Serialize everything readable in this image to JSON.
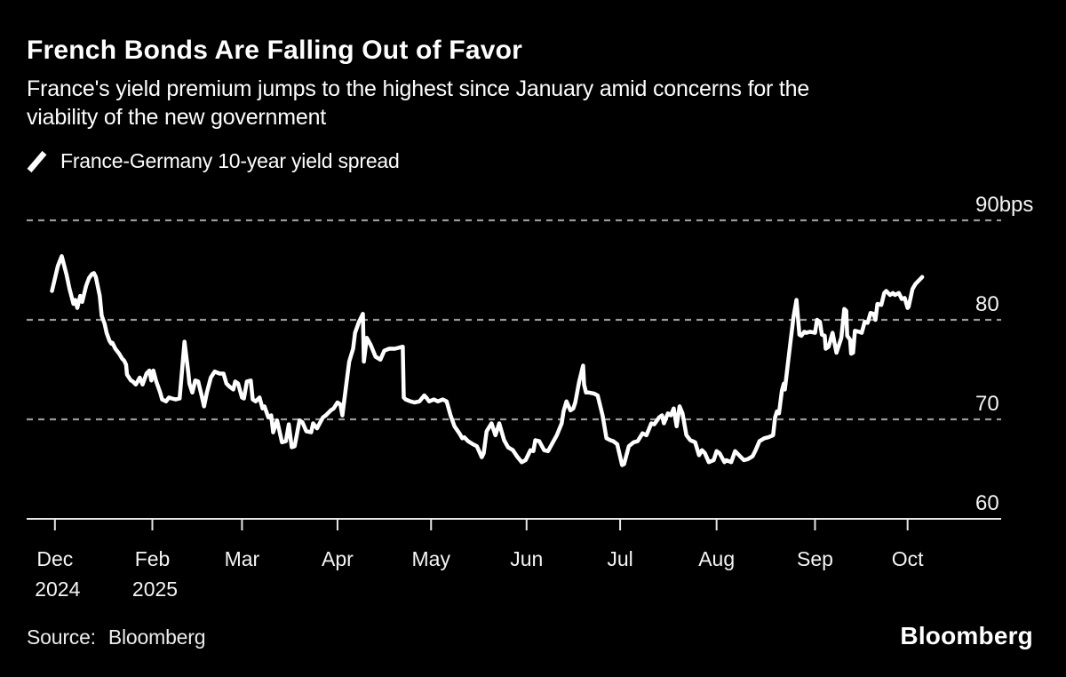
{
  "header": {
    "title": "French Bonds Are Falling Out of Favor",
    "subtitle_lines": [
      "France's yield premium jumps to the highest since January amid concerns for the",
      "viability of the new government"
    ]
  },
  "legend": {
    "series_label": "France-Germany 10-year yield spread"
  },
  "footer": {
    "source_label": "Source:",
    "source_value": "Bloomberg",
    "brand": "Bloomberg"
  },
  "colors": {
    "background": "#000000",
    "text": "#ffffff",
    "series_line": "#ffffff",
    "gridline": "#999999",
    "axis": "#e6e6e6"
  },
  "chart_data": {
    "type": "line",
    "title": "France-Germany 10-year yield spread",
    "unit": "bps",
    "xlabel": "",
    "ylabel": "",
    "ylim": [
      60,
      90
    ],
    "grid": "horizontal-dashed",
    "legend_position": "top-left",
    "yticks": [
      {
        "value": 90,
        "label": "90bps"
      },
      {
        "value": 80,
        "label": "80"
      },
      {
        "value": 70,
        "label": "70"
      },
      {
        "value": 60,
        "label": "60"
      }
    ],
    "xticks": [
      {
        "pos": 0.029,
        "label": "Dec",
        "year": "2024"
      },
      {
        "pos": 0.129,
        "label": "Feb",
        "year": "2025"
      },
      {
        "pos": 0.221,
        "label": "Mar"
      },
      {
        "pos": 0.319,
        "label": "Apr"
      },
      {
        "pos": 0.415,
        "label": "May"
      },
      {
        "pos": 0.513,
        "label": "Jun"
      },
      {
        "pos": 0.609,
        "label": "Jul"
      },
      {
        "pos": 0.708,
        "label": "Aug"
      },
      {
        "pos": 0.809,
        "label": "Sep"
      },
      {
        "pos": 0.904,
        "label": "Oct"
      }
    ],
    "series": [
      {
        "name": "France-Germany 10-year yield spread",
        "color": "#ffffff",
        "points": [
          [
            0.026,
            82.9
          ],
          [
            0.032,
            85.4
          ],
          [
            0.036,
            86.4
          ],
          [
            0.041,
            84.5
          ],
          [
            0.044,
            83.1
          ],
          [
            0.048,
            81.6
          ],
          [
            0.05,
            82.0
          ],
          [
            0.052,
            81.2
          ],
          [
            0.055,
            82.4
          ],
          [
            0.057,
            81.8
          ],
          [
            0.061,
            83.4
          ],
          [
            0.064,
            84.2
          ],
          [
            0.067,
            84.6
          ],
          [
            0.069,
            84.7
          ],
          [
            0.071,
            84.3
          ],
          [
            0.075,
            82.4
          ],
          [
            0.077,
            80.4
          ],
          [
            0.08,
            79.6
          ],
          [
            0.082,
            78.7
          ],
          [
            0.085,
            77.9
          ],
          [
            0.087,
            77.6
          ],
          [
            0.088,
            77.7
          ],
          [
            0.091,
            77.1
          ],
          [
            0.095,
            76.6
          ],
          [
            0.098,
            76.1
          ],
          [
            0.1,
            75.9
          ],
          [
            0.102,
            75.5
          ],
          [
            0.103,
            74.5
          ],
          [
            0.107,
            73.9
          ],
          [
            0.109,
            73.8
          ],
          [
            0.112,
            73.5
          ],
          [
            0.116,
            74.2
          ],
          [
            0.119,
            73.5
          ],
          [
            0.123,
            74.6
          ],
          [
            0.126,
            74.9
          ],
          [
            0.128,
            73.9
          ],
          [
            0.13,
            74.9
          ],
          [
            0.133,
            73.8
          ],
          [
            0.137,
            72.7
          ],
          [
            0.139,
            72.0
          ],
          [
            0.143,
            71.8
          ],
          [
            0.146,
            72.2
          ],
          [
            0.149,
            72.1
          ],
          [
            0.153,
            72.0
          ],
          [
            0.157,
            72.1
          ],
          [
            0.16,
            75.5
          ],
          [
            0.162,
            77.8
          ],
          [
            0.166,
            74.6
          ],
          [
            0.167,
            73.6
          ],
          [
            0.17,
            72.7
          ],
          [
            0.173,
            73.9
          ],
          [
            0.176,
            73.8
          ],
          [
            0.18,
            72.2
          ],
          [
            0.182,
            71.3
          ],
          [
            0.185,
            72.7
          ],
          [
            0.189,
            74.2
          ],
          [
            0.193,
            74.8
          ],
          [
            0.198,
            74.6
          ],
          [
            0.202,
            74.6
          ],
          [
            0.205,
            73.6
          ],
          [
            0.208,
            73.3
          ],
          [
            0.212,
            73.0
          ],
          [
            0.214,
            73.8
          ],
          [
            0.217,
            73.6
          ],
          [
            0.221,
            72.2
          ],
          [
            0.223,
            72.1
          ],
          [
            0.226,
            73.8
          ],
          [
            0.23,
            73.9
          ],
          [
            0.232,
            72.0
          ],
          [
            0.235,
            71.8
          ],
          [
            0.239,
            72.2
          ],
          [
            0.242,
            71.1
          ],
          [
            0.244,
            71.3
          ],
          [
            0.248,
            70.2
          ],
          [
            0.251,
            70.4
          ],
          [
            0.253,
            68.7
          ],
          [
            0.257,
            69.9
          ],
          [
            0.262,
            67.7
          ],
          [
            0.266,
            67.8
          ],
          [
            0.269,
            69.5
          ],
          [
            0.272,
            67.2
          ],
          [
            0.275,
            67.3
          ],
          [
            0.28,
            69.9
          ],
          [
            0.283,
            69.7
          ],
          [
            0.287,
            68.8
          ],
          [
            0.292,
            68.7
          ],
          [
            0.294,
            69.6
          ],
          [
            0.298,
            69.1
          ],
          [
            0.304,
            70.2
          ],
          [
            0.307,
            70.4
          ],
          [
            0.312,
            70.9
          ],
          [
            0.315,
            71.1
          ],
          [
            0.319,
            71.7
          ],
          [
            0.322,
            71.5
          ],
          [
            0.324,
            70.4
          ],
          [
            0.328,
            73.5
          ],
          [
            0.331,
            75.8
          ],
          [
            0.335,
            77.1
          ],
          [
            0.337,
            78.7
          ],
          [
            0.341,
            79.8
          ],
          [
            0.345,
            80.6
          ],
          [
            0.346,
            75.8
          ],
          [
            0.349,
            78.2
          ],
          [
            0.353,
            77.5
          ],
          [
            0.358,
            76.3
          ],
          [
            0.363,
            76.0
          ],
          [
            0.367,
            76.9
          ],
          [
            0.372,
            77.1
          ],
          [
            0.378,
            77.1
          ],
          [
            0.386,
            77.3
          ],
          [
            0.387,
            72.2
          ],
          [
            0.389,
            72.0
          ],
          [
            0.394,
            71.8
          ],
          [
            0.398,
            71.7
          ],
          [
            0.403,
            71.8
          ],
          [
            0.408,
            72.4
          ],
          [
            0.41,
            72.2
          ],
          [
            0.413,
            71.8
          ],
          [
            0.418,
            72.0
          ],
          [
            0.422,
            71.8
          ],
          [
            0.427,
            72.0
          ],
          [
            0.431,
            71.8
          ],
          [
            0.435,
            70.4
          ],
          [
            0.439,
            69.3
          ],
          [
            0.444,
            68.6
          ],
          [
            0.447,
            68.1
          ],
          [
            0.449,
            68.2
          ],
          [
            0.453,
            67.8
          ],
          [
            0.458,
            67.5
          ],
          [
            0.462,
            67.3
          ],
          [
            0.467,
            66.2
          ],
          [
            0.469,
            66.6
          ],
          [
            0.472,
            68.8
          ],
          [
            0.477,
            69.6
          ],
          [
            0.481,
            68.4
          ],
          [
            0.485,
            69.6
          ],
          [
            0.49,
            67.9
          ],
          [
            0.494,
            67.2
          ],
          [
            0.499,
            66.9
          ],
          [
            0.503,
            66.3
          ],
          [
            0.508,
            65.7
          ],
          [
            0.512,
            65.9
          ],
          [
            0.517,
            66.9
          ],
          [
            0.52,
            66.8
          ],
          [
            0.522,
            67.9
          ],
          [
            0.526,
            67.8
          ],
          [
            0.531,
            66.9
          ],
          [
            0.535,
            66.8
          ],
          [
            0.54,
            67.7
          ],
          [
            0.544,
            68.4
          ],
          [
            0.549,
            69.6
          ],
          [
            0.551,
            70.8
          ],
          [
            0.554,
            71.8
          ],
          [
            0.558,
            70.9
          ],
          [
            0.561,
            71.1
          ],
          [
            0.563,
            71.7
          ],
          [
            0.567,
            73.8
          ],
          [
            0.571,
            75.4
          ],
          [
            0.572,
            73.5
          ],
          [
            0.574,
            72.7
          ],
          [
            0.577,
            72.7
          ],
          [
            0.582,
            72.6
          ],
          [
            0.586,
            72.4
          ],
          [
            0.591,
            70.4
          ],
          [
            0.595,
            68.1
          ],
          [
            0.599,
            67.9
          ],
          [
            0.602,
            67.8
          ],
          [
            0.606,
            67.5
          ],
          [
            0.611,
            65.4
          ],
          [
            0.613,
            65.5
          ],
          [
            0.618,
            67.3
          ],
          [
            0.623,
            67.7
          ],
          [
            0.627,
            67.8
          ],
          [
            0.632,
            68.6
          ],
          [
            0.636,
            68.4
          ],
          [
            0.641,
            69.6
          ],
          [
            0.644,
            69.5
          ],
          [
            0.649,
            70.2
          ],
          [
            0.652,
            70.4
          ],
          [
            0.654,
            69.6
          ],
          [
            0.658,
            70.6
          ],
          [
            0.661,
            70.4
          ],
          [
            0.664,
            71.1
          ],
          [
            0.667,
            69.3
          ],
          [
            0.67,
            71.3
          ],
          [
            0.673,
            70.6
          ],
          [
            0.677,
            68.4
          ],
          [
            0.681,
            67.9
          ],
          [
            0.686,
            67.7
          ],
          [
            0.69,
            66.4
          ],
          [
            0.693,
            66.9
          ],
          [
            0.696,
            66.6
          ],
          [
            0.7,
            65.7
          ],
          [
            0.705,
            65.9
          ],
          [
            0.708,
            66.8
          ],
          [
            0.711,
            66.6
          ],
          [
            0.716,
            65.7
          ],
          [
            0.718,
            65.9
          ],
          [
            0.723,
            65.7
          ],
          [
            0.727,
            66.8
          ],
          [
            0.731,
            66.4
          ],
          [
            0.736,
            65.9
          ],
          [
            0.74,
            66.0
          ],
          [
            0.745,
            66.3
          ],
          [
            0.748,
            66.9
          ],
          [
            0.752,
            67.8
          ],
          [
            0.757,
            68.1
          ],
          [
            0.761,
            68.2
          ],
          [
            0.766,
            68.4
          ],
          [
            0.768,
            70.2
          ],
          [
            0.77,
            70.8
          ],
          [
            0.772,
            70.6
          ],
          [
            0.775,
            72.9
          ],
          [
            0.777,
            73.6
          ],
          [
            0.778,
            73.0
          ],
          [
            0.781,
            75.5
          ],
          [
            0.784,
            77.9
          ],
          [
            0.787,
            80.3
          ],
          [
            0.79,
            82.0
          ],
          [
            0.793,
            78.5
          ],
          [
            0.795,
            78.4
          ],
          [
            0.798,
            78.8
          ],
          [
            0.8,
            78.7
          ],
          [
            0.804,
            78.8
          ],
          [
            0.809,
            78.7
          ],
          [
            0.811,
            80.0
          ],
          [
            0.814,
            79.8
          ],
          [
            0.816,
            78.5
          ],
          [
            0.819,
            78.4
          ],
          [
            0.82,
            77.1
          ],
          [
            0.823,
            77.3
          ],
          [
            0.827,
            78.7
          ],
          [
            0.831,
            76.7
          ],
          [
            0.836,
            78.2
          ],
          [
            0.839,
            81.1
          ],
          [
            0.841,
            80.9
          ],
          [
            0.842,
            78.4
          ],
          [
            0.845,
            78.0
          ],
          [
            0.846,
            76.6
          ],
          [
            0.848,
            76.7
          ],
          [
            0.85,
            78.9
          ],
          [
            0.854,
            78.8
          ],
          [
            0.857,
            78.7
          ],
          [
            0.86,
            79.8
          ],
          [
            0.863,
            79.7
          ],
          [
            0.866,
            80.7
          ],
          [
            0.869,
            80.6
          ],
          [
            0.871,
            80.0
          ],
          [
            0.873,
            81.6
          ],
          [
            0.877,
            81.5
          ],
          [
            0.88,
            82.7
          ],
          [
            0.882,
            82.9
          ],
          [
            0.886,
            82.5
          ],
          [
            0.889,
            82.7
          ],
          [
            0.891,
            82.5
          ],
          [
            0.895,
            82.7
          ],
          [
            0.898,
            82.1
          ],
          [
            0.901,
            82.2
          ],
          [
            0.904,
            81.2
          ],
          [
            0.905,
            81.3
          ],
          [
            0.909,
            83.1
          ],
          [
            0.912,
            83.6
          ],
          [
            0.919,
            84.3
          ]
        ]
      }
    ]
  }
}
